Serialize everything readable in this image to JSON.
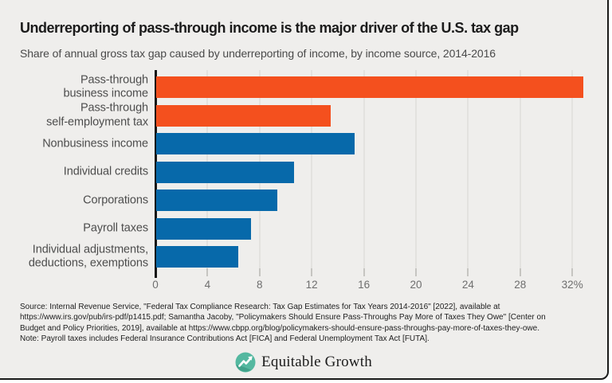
{
  "header": {
    "title": "Underreporting of pass-through income is the major driver of the U.S. tax gap",
    "subtitle": "Share of annual gross tax gap caused by underreporting of income, by income source, 2014-2016"
  },
  "chart_data": {
    "type": "bar",
    "orientation": "horizontal",
    "unit": "percent of gross tax gap",
    "categories": [
      "Pass-through business income",
      "Pass-through self-employment tax",
      "Nonbusiness income",
      "Individual credits",
      "Corporations",
      "Payroll taxes",
      "Individual adjustments, deductions, exemptions"
    ],
    "category_label_lines": [
      [
        "Pass-through",
        "business income"
      ],
      [
        "Pass-through",
        "self-employment tax"
      ],
      [
        "Nonbusiness income"
      ],
      [
        "Individual credits"
      ],
      [
        "Corporations"
      ],
      [
        "Payroll taxes"
      ],
      [
        "Individual adjustments,",
        "deductions, exemptions"
      ]
    ],
    "values": [
      32.8,
      13.4,
      15.2,
      10.6,
      9.3,
      7.3,
      6.3
    ],
    "bar_colors": [
      "#f4501e",
      "#f4501e",
      "#0769aa",
      "#0769aa",
      "#0769aa",
      "#0769aa",
      "#0769aa"
    ],
    "x_tick_values": [
      0,
      4,
      8,
      12,
      16,
      20,
      24,
      28,
      32
    ],
    "x_tick_labels": [
      "0",
      "4",
      "8",
      "12",
      "16",
      "20",
      "24",
      "28",
      "32%"
    ],
    "xlim": [
      0,
      33.3
    ],
    "grid": true,
    "legend": false,
    "xlabel": "",
    "ylabel": ""
  },
  "colors": {
    "orange": "#f4501e",
    "blue": "#0769aa",
    "background": "#efeeec",
    "logo_teal": "#54b8a0"
  },
  "footer": {
    "source_lines": [
      "Source: Internal Revenue Service, \"Federal Tax Compliance Research: Tax Gap Estimates for Tax Years 2014-2016\" [2022], available at",
      "https://www.irs.gov/pub/irs-pdf/p1415.pdf; Samantha Jacoby, \"Policymakers Should Ensure Pass-Throughs Pay More of Taxes They Owe\" [Center on",
      "Budget and Policy Priorities, 2019], available at https://www.cbpp.org/blog/policymakers-should-ensure-pass-throughs-pay-more-of-taxes-they-owe."
    ],
    "note": "Note: Payroll taxes includes Federal Insurance Contributions Act [FICA] and Federal Unemployment Tax Act [FUTA].",
    "logo_text": "Equitable Growth"
  }
}
